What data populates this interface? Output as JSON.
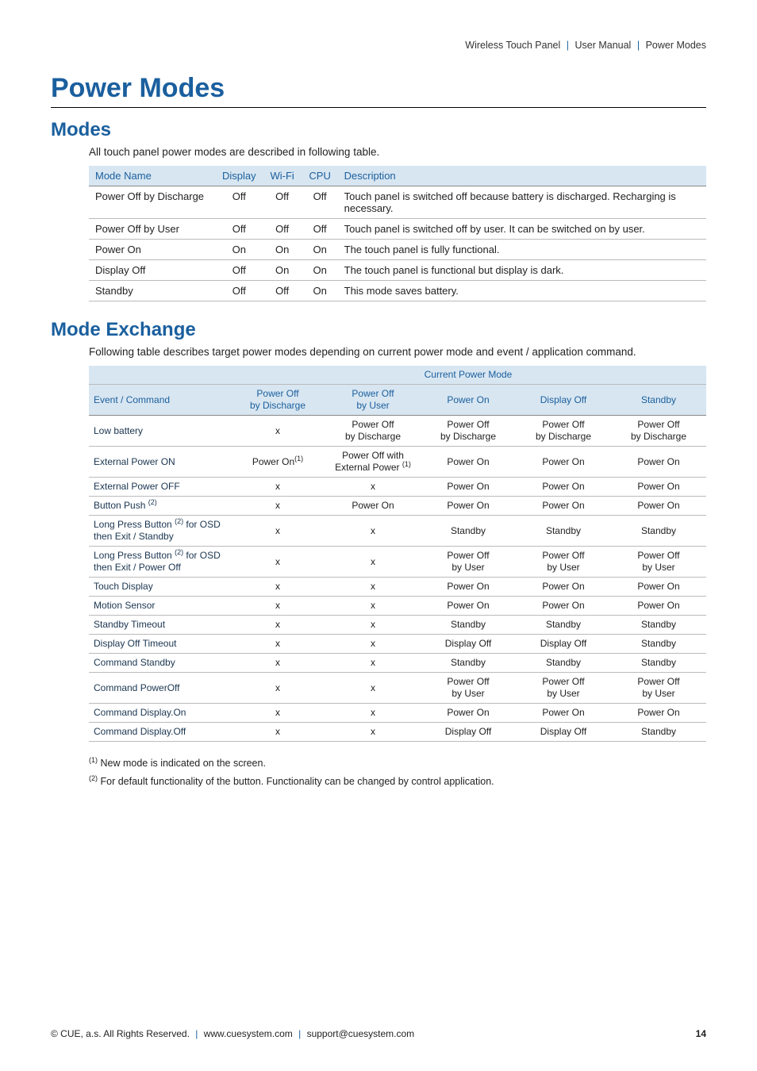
{
  "breadcrumb": {
    "a": "Wireless Touch Panel",
    "b": "User Manual",
    "c": "Power Modes"
  },
  "title": "Power Modes",
  "modes": {
    "heading": "Modes",
    "intro": "All touch panel power modes are described in following table.",
    "headers": {
      "name": "Mode Name",
      "display": "Display",
      "wifi": "Wi-Fi",
      "cpu": "CPU",
      "desc": "Description"
    },
    "rows": [
      {
        "name": "Power Off by Discharge",
        "display": "Off",
        "wifi": "Off",
        "cpu": "Off",
        "desc": "Touch panel is switched off because battery is discharged. Recharging is necessary."
      },
      {
        "name": "Power Off by User",
        "display": "Off",
        "wifi": "Off",
        "cpu": "Off",
        "desc": "Touch panel is switched off by user. It can be switched on by user."
      },
      {
        "name": "Power On",
        "display": "On",
        "wifi": "On",
        "cpu": "On",
        "desc": "The touch panel is fully functional."
      },
      {
        "name": "Display Off",
        "display": "Off",
        "wifi": "On",
        "cpu": "On",
        "desc": "The touch panel is functional but display is dark."
      },
      {
        "name": "Standby",
        "display": "Off",
        "wifi": "Off",
        "cpu": "On",
        "desc": "This mode saves battery."
      }
    ]
  },
  "exchange": {
    "heading": "Mode Exchange",
    "intro": "Following table describes target power modes depending on current power mode and event / application command.",
    "group_header": "Current Power Mode",
    "event_header": "Event / Command",
    "mode_headers": [
      "Power Off\nby Discharge",
      "Power Off\nby User",
      "Power On",
      "Display Off",
      "Standby"
    ],
    "rows": [
      {
        "event": "Low battery",
        "cells": [
          "x",
          "Power Off\nby Discharge",
          "Power Off\nby Discharge",
          "Power Off\nby Discharge",
          "Power Off\nby Discharge"
        ]
      },
      {
        "event": "External Power ON",
        "cells": [
          "Power On<sup>(1)</sup>",
          "Power Off with\nExternal Power <sup>(1)</sup>",
          "Power On",
          "Power On",
          "Power On"
        ],
        "html": true
      },
      {
        "event": "External Power OFF",
        "cells": [
          "x",
          "x",
          "Power On",
          "Power On",
          "Power On"
        ]
      },
      {
        "event": "Button Push <sup>(2)</sup>",
        "event_html": true,
        "cells": [
          "x",
          "Power On",
          "Power On",
          "Power On",
          "Power On"
        ]
      },
      {
        "event": "Long Press Button <sup>(2)</sup> for OSD then Exit / Standby",
        "event_html": true,
        "cells": [
          "x",
          "x",
          "Standby",
          "Standby",
          "Standby"
        ]
      },
      {
        "event": "Long Press Button <sup>(2)</sup> for OSD then Exit / Power Off",
        "event_html": true,
        "cells": [
          "x",
          "x",
          "Power Off\nby User",
          "Power Off\nby User",
          "Power Off\nby User"
        ]
      },
      {
        "event": "Touch Display",
        "cells": [
          "x",
          "x",
          "Power On",
          "Power On",
          "Power On"
        ]
      },
      {
        "event": "Motion Sensor",
        "cells": [
          "x",
          "x",
          "Power On",
          "Power On",
          "Power On"
        ]
      },
      {
        "event": "Standby Timeout",
        "cells": [
          "x",
          "x",
          "Standby",
          "Standby",
          "Standby"
        ]
      },
      {
        "event": "Display Off Timeout",
        "cells": [
          "x",
          "x",
          "Display Off",
          "Display Off",
          "Standby"
        ]
      },
      {
        "event": "Command Standby",
        "cells": [
          "x",
          "x",
          "Standby",
          "Standby",
          "Standby"
        ]
      },
      {
        "event": "Command PowerOff",
        "cells": [
          "x",
          "x",
          "Power Off\nby User",
          "Power Off\nby User",
          "Power Off\nby User"
        ]
      },
      {
        "event": "Command Display.On",
        "cells": [
          "x",
          "x",
          "Power On",
          "Power On",
          "Power On"
        ]
      },
      {
        "event": "Command Display.Off",
        "cells": [
          "x",
          "x",
          "Display Off",
          "Display Off",
          "Standby"
        ]
      }
    ]
  },
  "footnotes": {
    "f1": "New mode is indicated on the screen.",
    "f2": "For default functionality of the button. Functionality can be changed by control application."
  },
  "footer": {
    "copyright": "© CUE, a.s. All Rights Reserved.",
    "url": "www.cuesystem.com",
    "email": "support@cuesystem.com",
    "page": "14"
  }
}
